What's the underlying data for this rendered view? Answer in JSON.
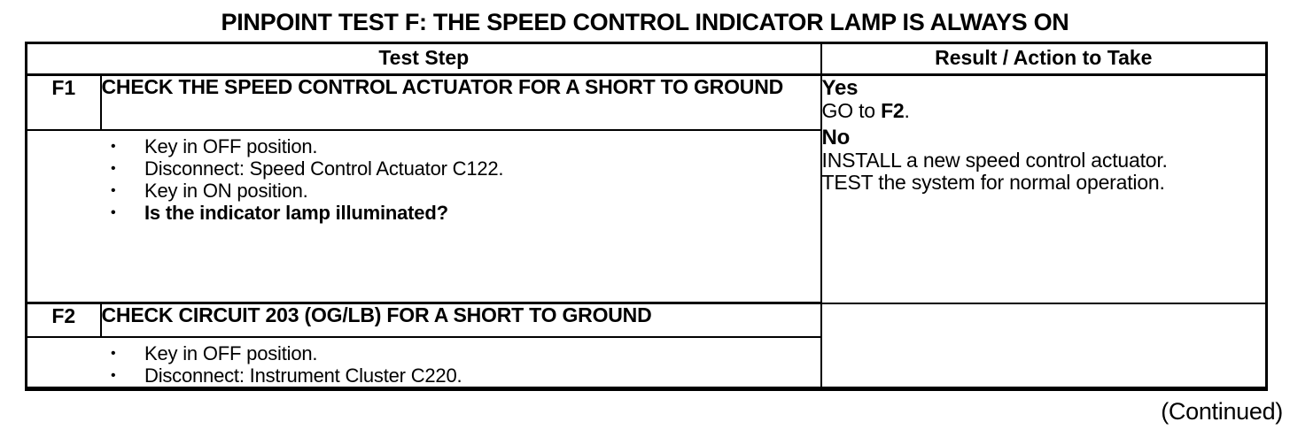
{
  "document": {
    "title": "PINPOINT TEST F: THE SPEED CONTROL INDICATOR LAMP IS ALWAYS ON",
    "continued_note": "(Continued)"
  },
  "table": {
    "headers": {
      "test_step": "Test Step",
      "result": "Result / Action to Take"
    },
    "steps": [
      {
        "id": "F1",
        "title": "CHECK THE SPEED CONTROL ACTUATOR FOR A SHORT TO GROUND",
        "bullets": [
          "Key in OFF position.",
          "Disconnect: Speed Control Actuator C122.",
          "Key in ON position.",
          "Is the indicator lamp illuminated?"
        ],
        "result": {
          "yes_label": "Yes",
          "yes_action_prefix": "GO to ",
          "yes_action_ref": "F2",
          "yes_action_suffix": ".",
          "no_label": "No",
          "no_action_line1": "INSTALL a new speed control actuator.",
          "no_action_line2": "TEST the system for normal operation."
        }
      },
      {
        "id": "F2",
        "title": "CHECK CIRCUIT 203 (OG/LB) FOR A SHORT TO GROUND",
        "bullets": [
          "Key in OFF position.",
          "Disconnect: Instrument Cluster C220."
        ]
      }
    ]
  }
}
